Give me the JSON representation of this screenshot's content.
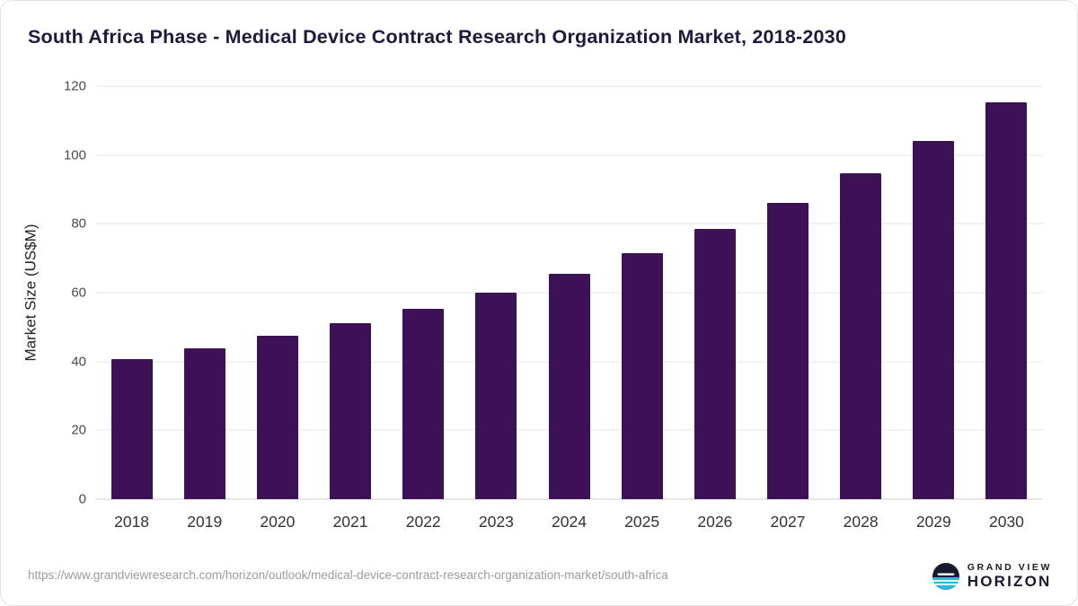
{
  "chart_data": {
    "type": "bar",
    "title": "South Africa Phase - Medical Device Contract Research Organization Market, 2018-2030",
    "categories": [
      "2018",
      "2019",
      "2020",
      "2021",
      "2022",
      "2023",
      "2024",
      "2025",
      "2026",
      "2027",
      "2028",
      "2029",
      "2030"
    ],
    "values": [
      40.8,
      43.9,
      47.4,
      51.1,
      55.4,
      60.1,
      65.5,
      71.5,
      78.5,
      86.1,
      94.6,
      104.1,
      115.4
    ],
    "xlabel": "",
    "ylabel": "Market Size (US$M)",
    "ylim": [
      0,
      120
    ],
    "yticks": [
      0,
      20,
      40,
      60,
      80,
      100,
      120
    ],
    "grid": "horizontal",
    "legend": "none"
  },
  "colors": {
    "bar": "#3D1155",
    "title": "#1F1A3D",
    "gridline": "#E4E4E4",
    "axis_text": "#4A4A4A",
    "url_text": "#9B9B9B",
    "logo_navy": "#161B2E",
    "logo_teal": "#2FB9D8"
  },
  "footer": {
    "source_url": "https://www.grandviewresearch.com/horizon/outlook/medical-device-contract-research-organization-market/south-africa",
    "logo_top": "GRAND VIEW",
    "logo_bottom": "HORIZON"
  }
}
